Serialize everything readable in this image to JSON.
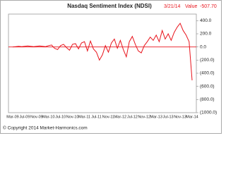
{
  "chart_data": {
    "type": "line",
    "title": "Nasdaq  Sentiment Index (NDSI)",
    "date": "3/21/14",
    "value_caption": "Value",
    "value_text": "-507.70",
    "footer": "© Copyright 2014 Market-Harmonics.com",
    "categories": [
      "Mar-09",
      null,
      null,
      null,
      "Jul-09",
      null,
      null,
      null,
      "Nov-09",
      null,
      null,
      null,
      "Mar-10",
      null,
      null,
      null,
      "Jul-10",
      null,
      null,
      null,
      "Nov-10",
      null,
      null,
      null,
      "Mar-11",
      null,
      null,
      null,
      "Jul-11",
      null,
      null,
      null,
      "Nov-11",
      null,
      null,
      null,
      "Mar-12",
      null,
      null,
      null,
      "Jul-12",
      null,
      null,
      null,
      "Nov-12",
      null,
      null,
      null,
      "Mar-13",
      null,
      null,
      null,
      "Jul-13",
      null,
      null,
      null,
      "Nov-13",
      null,
      null,
      null,
      "Mar-14"
    ],
    "series": [
      {
        "name": "NDSI",
        "color": "#e8141c",
        "values": [
          0,
          5,
          10,
          5,
          10,
          15,
          10,
          5,
          10,
          15,
          10,
          5,
          20,
          30,
          -20,
          -40,
          20,
          40,
          -10,
          -50,
          40,
          50,
          -30,
          60,
          80,
          -60,
          90,
          -30,
          -80,
          -200,
          -120,
          20,
          -80,
          60,
          120,
          -20,
          100,
          -40,
          -150,
          80,
          160,
          40,
          -60,
          -90,
          20,
          80,
          150,
          100,
          180,
          80,
          250,
          120,
          200,
          100,
          220,
          300,
          360,
          250,
          180,
          80,
          -507.7
        ]
      }
    ],
    "ylim": [
      -1000,
      500
    ],
    "yticks": [
      {
        "value": 400,
        "label": "400.0"
      },
      {
        "value": 200,
        "label": "200.0"
      },
      {
        "value": 0,
        "label": "0.0"
      },
      {
        "value": -200,
        "label": "(200.0)"
      },
      {
        "value": -400,
        "label": "(400.0)"
      },
      {
        "value": -600,
        "label": "(600.0)"
      },
      {
        "value": -800,
        "label": "(800.0)"
      },
      {
        "value": -1000,
        "label": "(1000.0)"
      }
    ],
    "zero_line_color": "#e8141c"
  }
}
